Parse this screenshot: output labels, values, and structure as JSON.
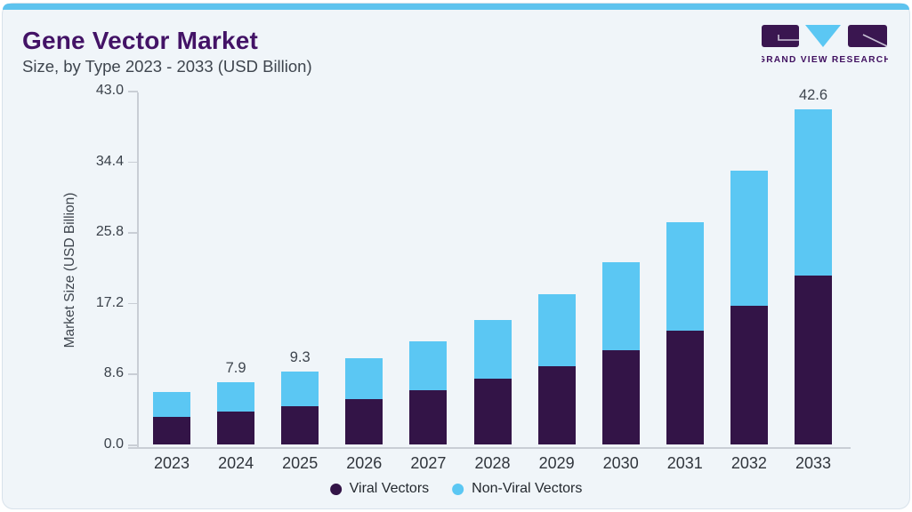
{
  "header": {
    "title": "Gene Vector Market",
    "subtitle": "Size, by Type 2023 - 2033 (USD Billion)"
  },
  "brand": {
    "name": "GRAND VIEW RESEARCH",
    "logo_purple": "#3a1650",
    "logo_blue": "#5bc7f3",
    "logo_line": "#c9c2d6",
    "logo_text_color": "#401060"
  },
  "colors": {
    "accent_strip": "#5ec3ee",
    "card_bg": "#f0f5f9",
    "card_border": "#d8e2eb",
    "axis": "#c9ced5",
    "title": "#431366"
  },
  "chart_data": {
    "type": "bar",
    "variant": "stacked",
    "title": "Gene Vector Market",
    "subtitle": "Size, by Type 2023 - 2033 (USD Billion)",
    "xlabel": "",
    "ylabel": "Market Size (USD Billion)",
    "ylim": [
      0,
      43.0
    ],
    "yticks": [
      "0.0",
      "8.6",
      "17.2",
      "25.8",
      "34.4",
      "43.0"
    ],
    "grid": false,
    "legend_position": "bottom",
    "categories": [
      "2023",
      "2024",
      "2025",
      "2026",
      "2027",
      "2028",
      "2029",
      "2030",
      "2031",
      "2032",
      "2033"
    ],
    "series": [
      {
        "name": "Viral Vectors",
        "color": "#331447",
        "values": [
          3.5,
          4.2,
          4.9,
          5.8,
          6.9,
          8.4,
          9.9,
          12.0,
          14.5,
          17.6,
          21.5
        ]
      },
      {
        "name": "Non-Viral Vectors",
        "color": "#5bc7f3",
        "values": [
          3.2,
          3.7,
          4.4,
          5.2,
          6.2,
          7.4,
          9.2,
          11.2,
          13.8,
          17.2,
          21.1
        ]
      }
    ],
    "totals": [
      6.7,
      7.9,
      9.3,
      11.0,
      13.1,
      15.8,
      19.1,
      23.2,
      28.3,
      34.8,
      42.6
    ],
    "total_labels": [
      "",
      "7.9",
      "9.3",
      "",
      "",
      "",
      "",
      "",
      "",
      "",
      "42.6"
    ]
  }
}
